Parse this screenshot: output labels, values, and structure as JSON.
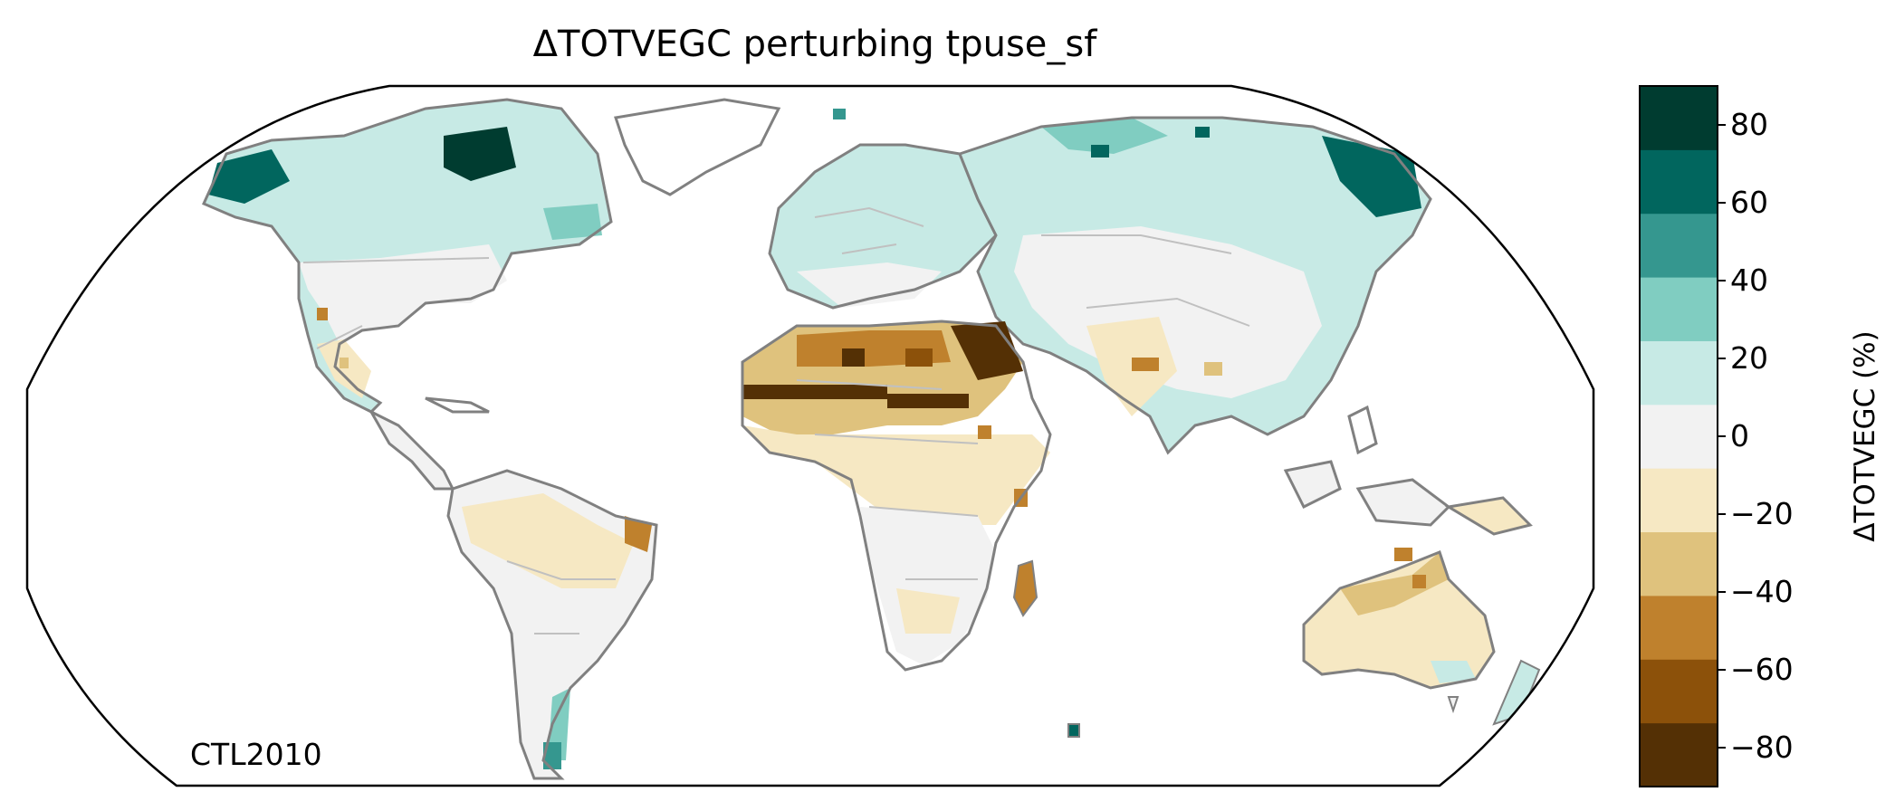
{
  "figure": {
    "title": "ΔTOTVEGC perturbing tpuse_sf",
    "run_label": "CTL2010"
  },
  "colorbar": {
    "label": "ΔTOTVEGC (%)",
    "range": [
      -90,
      90
    ],
    "bounds": [
      -90,
      -70,
      -50,
      -30,
      -10,
      10,
      30,
      50,
      70,
      90
    ],
    "colors": [
      "#543005",
      "#8c510a",
      "#bf812d",
      "#dfc27d",
      "#f6e8c3",
      "#f2f2f2",
      "#c7eae5",
      "#80cdc1",
      "#35978f",
      "#01665e",
      "#003c30"
    ],
    "ticks": [
      -80,
      -60,
      -40,
      -20,
      0,
      20,
      40,
      60,
      80
    ],
    "tick_labels": [
      "−80",
      "−60",
      "−40",
      "−20",
      "0",
      "20",
      "40",
      "60",
      "80"
    ]
  },
  "map": {
    "projection": "Robinson",
    "coastline_color": "#808080",
    "border_color": "#c0c0c0",
    "ocean_color": "#ffffff"
  }
}
